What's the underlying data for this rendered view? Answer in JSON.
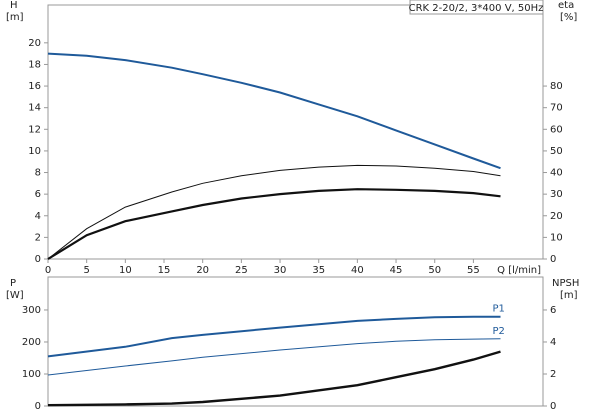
{
  "chart_data": [
    {
      "type": "line",
      "title": "CRK 2-20/2, 3*400 V, 50Hz",
      "ylabel": "H",
      "yunit": "[m]",
      "y2label": "eta",
      "y2unit": "[%]",
      "xlabel": "Q [l/min]",
      "x": [
        0,
        5,
        10,
        16,
        20,
        25,
        30,
        35,
        40,
        45,
        50,
        55,
        58.5
      ],
      "xlim": [
        0,
        64
      ],
      "xticks": [
        0,
        5,
        10,
        15,
        20,
        25,
        30,
        35,
        40,
        45,
        50,
        55
      ],
      "ylim": [
        0,
        23.5
      ],
      "yticks": [
        0,
        2,
        4,
        6,
        8,
        10,
        12,
        14,
        16,
        18,
        20
      ],
      "y2lim": [
        0,
        117.5
      ],
      "y2ticks": [
        0,
        10,
        20,
        30,
        40,
        50,
        60,
        70,
        80
      ],
      "series": [
        {
          "color": "#1f5a9a",
          "width": 2,
          "values": [
            19,
            18.8,
            18.4,
            17.7,
            17.1,
            16.3,
            15.4,
            14.3,
            13.2,
            11.9,
            10.6,
            9.3,
            8.4
          ]
        },
        {
          "color": "#111111",
          "width": 1,
          "axis": "y2",
          "values": [
            0,
            14,
            24,
            31,
            35,
            38.5,
            41,
            42.5,
            43.3,
            43,
            42,
            40.5,
            38.5
          ]
        },
        {
          "color": "#111111",
          "width": 2.2,
          "axis": "y2",
          "values": [
            0,
            11,
            17.5,
            22,
            25,
            28,
            30,
            31.5,
            32.3,
            32,
            31.5,
            30.5,
            29
          ]
        }
      ]
    },
    {
      "type": "line",
      "ylabel": "P",
      "yunit": "[W]",
      "y2label": "NPSH",
      "y2unit": "[m]",
      "x": [
        0,
        10,
        16,
        20,
        30,
        40,
        45,
        50,
        55,
        58.5
      ],
      "xlim": [
        0,
        64
      ],
      "ylim": [
        0,
        403
      ],
      "yticks": [
        0,
        100,
        200,
        300
      ],
      "y2lim": [
        0,
        8.06
      ],
      "y2ticks": [
        0,
        2,
        4,
        6
      ],
      "series": [
        {
          "name": "P1",
          "color": "#1f5a9a",
          "width": 2,
          "values": [
            155,
            185,
            212,
            222,
            245,
            266,
            272,
            277,
            279,
            279
          ]
        },
        {
          "name": "P2",
          "color": "#1f5a9a",
          "width": 1,
          "values": [
            97,
            125,
            141,
            152,
            175,
            195,
            202,
            207,
            209,
            210
          ]
        },
        {
          "color": "#111111",
          "width": 2.4,
          "axis": "y2",
          "values": [
            0.05,
            0.1,
            0.15,
            0.25,
            0.65,
            1.3,
            1.8,
            2.3,
            2.9,
            3.4
          ]
        }
      ]
    }
  ]
}
